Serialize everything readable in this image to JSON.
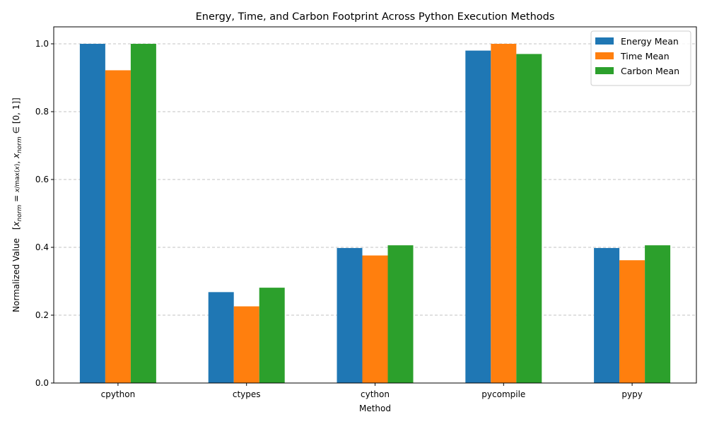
{
  "chart_data": {
    "type": "bar",
    "title": "Energy, Time, and Carbon Footprint Across Python Execution Methods",
    "xlabel": "Method",
    "ylabel": "Normalized Value",
    "ylabel_formula": "[x_norm = x / max(x), x_norm ∈ [0, 1]]",
    "ylim": [
      0,
      1.05
    ],
    "yticks": [
      0.0,
      0.2,
      0.4,
      0.6,
      0.8,
      1.0
    ],
    "ytick_labels": [
      "0.0",
      "0.2",
      "0.4",
      "0.6",
      "0.8",
      "1.0"
    ],
    "grid": "y-dashed",
    "legend_position": "top-right",
    "categories": [
      "cpython",
      "ctypes",
      "cython",
      "pycompile",
      "pypy"
    ],
    "series": [
      {
        "name": "Energy Mean",
        "color": "#1f77b4",
        "values": [
          1.0,
          0.268,
          0.398,
          0.98,
          0.398
        ]
      },
      {
        "name": "Time Mean",
        "color": "#ff7f0e",
        "values": [
          0.922,
          0.226,
          0.376,
          1.0,
          0.362
        ]
      },
      {
        "name": "Carbon Mean",
        "color": "#2ca02c",
        "values": [
          1.0,
          0.281,
          0.406,
          0.97,
          0.406
        ]
      }
    ]
  }
}
